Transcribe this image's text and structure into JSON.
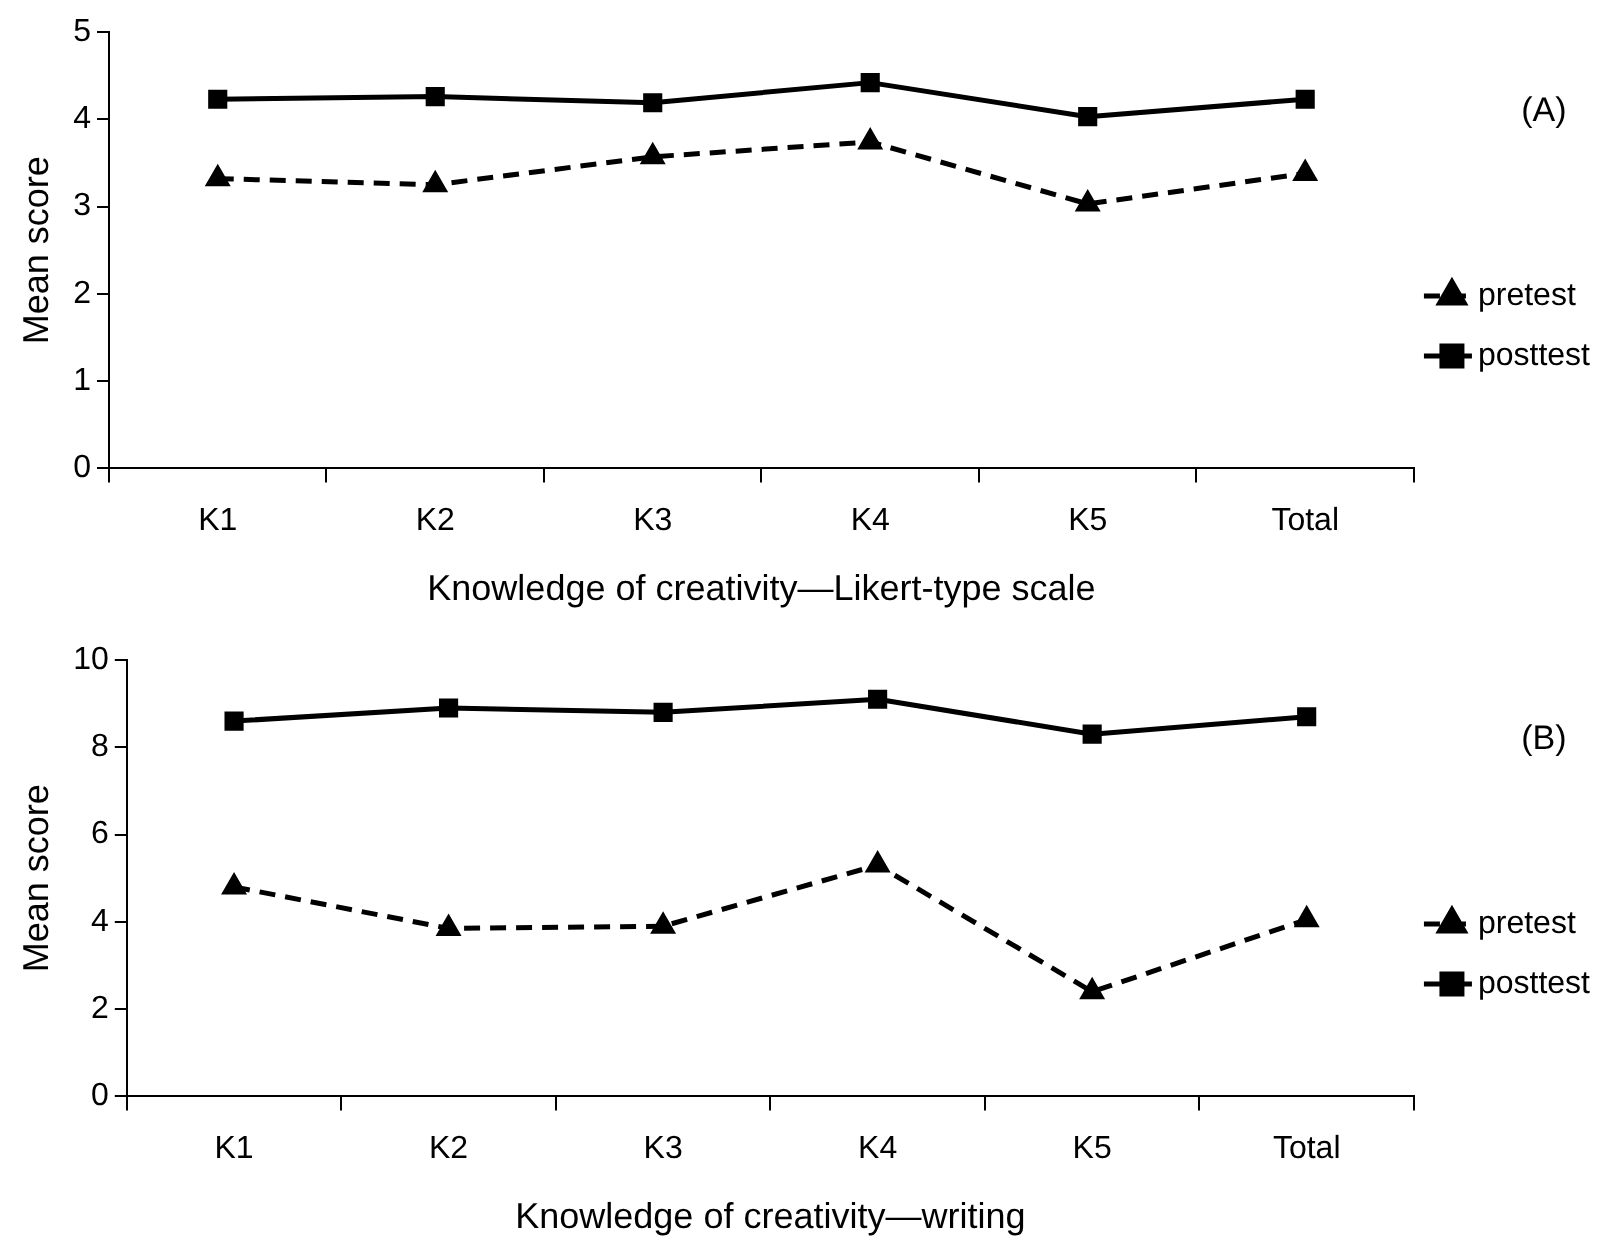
{
  "chart_data": [
    {
      "type": "line",
      "xlabel": "Knowledge of creativity—Likert-type scale",
      "ylabel": "Mean score",
      "annotations": [
        "(A)"
      ],
      "categories": [
        "K1",
        "K2",
        "K3",
        "K4",
        "K5",
        "Total"
      ],
      "series": [
        {
          "name": "pretest",
          "color": "#000000",
          "marker": "triangle",
          "line_style": "dashed",
          "values": [
            3.32,
            3.25,
            3.57,
            3.74,
            3.03,
            3.38
          ]
        },
        {
          "name": "posttest",
          "color": "#000000",
          "marker": "square",
          "line_style": "solid",
          "values": [
            4.23,
            4.26,
            4.19,
            4.42,
            4.03,
            4.23
          ]
        }
      ],
      "ylim": [
        0,
        5
      ],
      "yticks": [
        0,
        1,
        2,
        3,
        4,
        5
      ],
      "grid": false,
      "legend": "right"
    },
    {
      "type": "line",
      "xlabel": "Knowledge of creativity—writing",
      "ylabel": "Mean score",
      "annotations": [
        "(B)"
      ],
      "categories": [
        "K1",
        "K2",
        "K3",
        "K4",
        "K5",
        "Total"
      ],
      "series": [
        {
          "name": "pretest",
          "color": "#000000",
          "marker": "triangle",
          "line_style": "dashed",
          "values": [
            4.8,
            3.85,
            3.9,
            5.3,
            2.4,
            4.05
          ]
        },
        {
          "name": "posttest",
          "color": "#000000",
          "marker": "square",
          "line_style": "solid",
          "values": [
            8.6,
            8.9,
            8.8,
            9.1,
            8.3,
            8.7
          ]
        }
      ],
      "ylim": [
        0,
        10
      ],
      "yticks": [
        0,
        2,
        4,
        6,
        8,
        10
      ],
      "grid": false,
      "legend": "right"
    }
  ]
}
